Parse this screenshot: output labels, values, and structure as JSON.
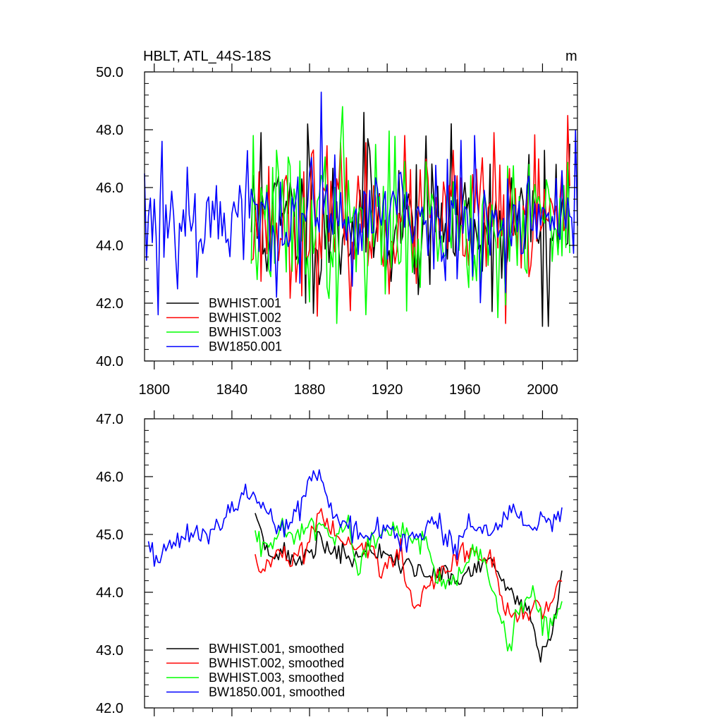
{
  "chart_data": [
    {
      "type": "line",
      "title": "HBLT, ATL_44S-18S",
      "units": "m",
      "xlim": [
        1795,
        2018
      ],
      "ylim": [
        40.0,
        50.0
      ],
      "xticks": [
        1800,
        1840,
        1880,
        1920,
        1960,
        2000
      ],
      "yticks": [
        40.0,
        42.0,
        44.0,
        46.0,
        48.0,
        50.0
      ],
      "ytick_labels": [
        "40.0",
        "42.0",
        "44.0",
        "46.0",
        "48.0",
        "50.0"
      ],
      "legend_position": "bottom-left",
      "series": [
        {
          "name": "BWHIST.001",
          "color": "#000000",
          "start": 1850,
          "end": 2014,
          "mean": 44.8,
          "spread": 1.25,
          "seed": 11,
          "peaks": [
            [
              1855,
              47.9
            ],
            [
              1879,
              48.2
            ],
            [
              1878,
              42.0
            ],
            [
              1908,
              48.6
            ],
            [
              2000,
              41.2
            ],
            [
              2003,
              41.2
            ]
          ]
        },
        {
          "name": "BWHIST.002",
          "color": "#ff0000",
          "start": 1850,
          "end": 2014,
          "mean": 44.8,
          "spread": 1.2,
          "seed": 23,
          "peaks": [
            [
              1882,
              47.3
            ],
            [
              1975,
              47.9
            ],
            [
              1981,
              41.3
            ]
          ]
        },
        {
          "name": "BWHIST.003",
          "color": "#00ff00",
          "start": 1850,
          "end": 2014,
          "mean": 44.8,
          "spread": 1.3,
          "seed": 37,
          "peaks": [
            [
              1851,
              47.8
            ],
            [
              1897,
              48.8
            ],
            [
              1894,
              41.3
            ],
            [
              1909,
              41.6
            ],
            [
              1977,
              41.5
            ],
            [
              1993,
              46.8
            ]
          ]
        },
        {
          "name": "BW1850.001",
          "color": "#0000ff",
          "start": 1795,
          "end": 2018,
          "mean": 45.0,
          "spread": 1.05,
          "seed": 53,
          "peaks": [
            [
              1802,
              41.6
            ],
            [
              1804,
              47.6
            ],
            [
              1886,
              49.3
            ],
            [
              1965,
              47.8
            ],
            [
              2017,
              48.0
            ]
          ]
        }
      ]
    },
    {
      "type": "line",
      "title": "",
      "xlim": [
        1795,
        2018
      ],
      "ylim": [
        42.0,
        47.0
      ],
      "xticks": [
        1800,
        1840,
        1880,
        1920,
        1960,
        2000
      ],
      "yticks": [
        42.0,
        43.0,
        44.0,
        45.0,
        46.0,
        47.0
      ],
      "ytick_labels": [
        "42.0",
        "43.0",
        "44.0",
        "45.0",
        "46.0",
        "47.0"
      ],
      "legend_position": "bottom-left",
      "series": [
        {
          "name": "BWHIST.001, smoothed",
          "color": "#000000",
          "seed": 71,
          "noise": 0.1,
          "anchors": [
            [
              1852,
              45.4
            ],
            [
              1856,
              45.0
            ],
            [
              1860,
              44.7
            ],
            [
              1870,
              44.6
            ],
            [
              1875,
              44.5
            ],
            [
              1882,
              44.8
            ],
            [
              1885,
              45.0
            ],
            [
              1890,
              44.7
            ],
            [
              1900,
              44.6
            ],
            [
              1912,
              44.7
            ],
            [
              1920,
              44.6
            ],
            [
              1930,
              44.5
            ],
            [
              1938,
              44.3
            ],
            [
              1945,
              44.3
            ],
            [
              1950,
              44.4
            ],
            [
              1955,
              44.1
            ],
            [
              1965,
              44.4
            ],
            [
              1972,
              44.5
            ],
            [
              1978,
              44.3
            ],
            [
              1985,
              43.9
            ],
            [
              1990,
              43.8
            ],
            [
              1995,
              43.5
            ],
            [
              1998,
              42.9
            ],
            [
              2001,
              43.0
            ],
            [
              2005,
              43.3
            ],
            [
              2010,
              44.3
            ]
          ]
        },
        {
          "name": "BWHIST.002, smoothed",
          "color": "#ff0000",
          "seed": 83,
          "noise": 0.1,
          "anchors": [
            [
              1852,
              44.6
            ],
            [
              1854,
              44.4
            ],
            [
              1858,
              44.5
            ],
            [
              1865,
              44.7
            ],
            [
              1873,
              44.4
            ],
            [
              1877,
              44.7
            ],
            [
              1886,
              45.4
            ],
            [
              1890,
              45.1
            ],
            [
              1897,
              44.9
            ],
            [
              1905,
              44.8
            ],
            [
              1912,
              44.8
            ],
            [
              1916,
              44.3
            ],
            [
              1920,
              44.5
            ],
            [
              1927,
              44.8
            ],
            [
              1930,
              44.1
            ],
            [
              1935,
              43.7
            ],
            [
              1940,
              44.1
            ],
            [
              1950,
              44.4
            ],
            [
              1960,
              44.8
            ],
            [
              1966,
              44.6
            ],
            [
              1970,
              44.5
            ],
            [
              1975,
              44.6
            ],
            [
              1980,
              43.7
            ],
            [
              1985,
              43.6
            ],
            [
              1990,
              43.6
            ],
            [
              2000,
              43.8
            ],
            [
              2005,
              43.8
            ],
            [
              2010,
              44.2
            ]
          ]
        },
        {
          "name": "BWHIST.003, smoothed",
          "color": "#00ff00",
          "seed": 97,
          "noise": 0.12,
          "anchors": [
            [
              1852,
              44.9
            ],
            [
              1858,
              44.8
            ],
            [
              1865,
              44.9
            ],
            [
              1875,
              45.0
            ],
            [
              1880,
              45.2
            ],
            [
              1886,
              45.1
            ],
            [
              1892,
              44.9
            ],
            [
              1900,
              45.1
            ],
            [
              1905,
              44.3
            ],
            [
              1912,
              45.0
            ],
            [
              1920,
              45.0
            ],
            [
              1928,
              45.1
            ],
            [
              1933,
              44.9
            ],
            [
              1940,
              44.9
            ],
            [
              1945,
              44.3
            ],
            [
              1950,
              44.1
            ],
            [
              1955,
              44.2
            ],
            [
              1962,
              44.4
            ],
            [
              1967,
              44.9
            ],
            [
              1972,
              44.3
            ],
            [
              1975,
              43.8
            ],
            [
              1980,
              43.4
            ],
            [
              1983,
              43.0
            ],
            [
              1986,
              43.6
            ],
            [
              1990,
              43.8
            ],
            [
              1995,
              44.0
            ],
            [
              2000,
              43.4
            ],
            [
              2005,
              43.5
            ],
            [
              2010,
              43.9
            ]
          ]
        },
        {
          "name": "BW1850.001, smoothed",
          "color": "#0000ff",
          "seed": 109,
          "noise": 0.1,
          "anchors": [
            [
              1797,
              44.8
            ],
            [
              1800,
              44.6
            ],
            [
              1805,
              44.7
            ],
            [
              1812,
              44.9
            ],
            [
              1820,
              45.0
            ],
            [
              1828,
              45.0
            ],
            [
              1835,
              45.2
            ],
            [
              1843,
              45.5
            ],
            [
              1847,
              45.8
            ],
            [
              1852,
              45.7
            ],
            [
              1858,
              45.4
            ],
            [
              1864,
              45.1
            ],
            [
              1870,
              45.2
            ],
            [
              1876,
              45.6
            ],
            [
              1880,
              46.0
            ],
            [
              1885,
              46.1
            ],
            [
              1890,
              45.6
            ],
            [
              1895,
              45.2
            ],
            [
              1900,
              45.1
            ],
            [
              1910,
              45.0
            ],
            [
              1920,
              45.1
            ],
            [
              1930,
              44.9
            ],
            [
              1938,
              45.0
            ],
            [
              1946,
              45.2
            ],
            [
              1952,
              44.9
            ],
            [
              1955,
              44.8
            ],
            [
              1962,
              45.2
            ],
            [
              1970,
              45.0
            ],
            [
              1978,
              45.2
            ],
            [
              1985,
              45.5
            ],
            [
              1990,
              45.2
            ],
            [
              1995,
              45.1
            ],
            [
              2000,
              45.3
            ],
            [
              2005,
              45.1
            ],
            [
              2010,
              45.3
            ]
          ]
        }
      ]
    }
  ]
}
